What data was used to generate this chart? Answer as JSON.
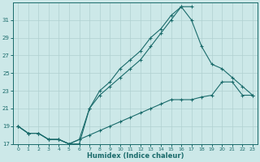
{
  "xlabel": "Humidex (Indice chaleur)",
  "bg_color": "#cce8e8",
  "grid_color": "#b0d0d0",
  "line_color": "#1a6b6b",
  "xlim": [
    -0.5,
    23.5
  ],
  "ylim": [
    17,
    33
  ],
  "yticks": [
    17,
    19,
    21,
    23,
    25,
    27,
    29,
    31
  ],
  "xticks": [
    0,
    1,
    2,
    3,
    4,
    5,
    6,
    7,
    8,
    9,
    10,
    11,
    12,
    13,
    14,
    15,
    16,
    17,
    18,
    19,
    20,
    21,
    22,
    23
  ],
  "line1_x": [
    0,
    1,
    2,
    3,
    4,
    5,
    6,
    7,
    8,
    9,
    10,
    11,
    12,
    13,
    14,
    15,
    16,
    17
  ],
  "line1_y": [
    19,
    18.2,
    18.2,
    17.5,
    17.5,
    17,
    17,
    21,
    23,
    24,
    25.5,
    26.5,
    27.5,
    29,
    30,
    31.5,
    32.5,
    32.5
  ],
  "line2_x": [
    0,
    1,
    2,
    3,
    4,
    5,
    6,
    7,
    8,
    9,
    10,
    11,
    12,
    13,
    14,
    15,
    16,
    17,
    18,
    19,
    20,
    21,
    22,
    23
  ],
  "line2_y": [
    19,
    18.2,
    18.2,
    17.5,
    17.5,
    17,
    17.5,
    21,
    22.5,
    23.5,
    24.5,
    25.5,
    26.5,
    28,
    29.5,
    31,
    32.5,
    31,
    28,
    26,
    25.5,
    24.5,
    23.5,
    22.5
  ],
  "line3_x": [
    0,
    1,
    2,
    3,
    4,
    5,
    6,
    7,
    8,
    9,
    10,
    11,
    12,
    13,
    14,
    15,
    16,
    17,
    18,
    19,
    20,
    21,
    22,
    23
  ],
  "line3_y": [
    19,
    18.2,
    18.2,
    17.5,
    17.5,
    17,
    17.5,
    18,
    18.5,
    19,
    19.5,
    20,
    20.5,
    21,
    21.5,
    22,
    22,
    22,
    22.3,
    22.5,
    24,
    24,
    22.5,
    22.5
  ]
}
